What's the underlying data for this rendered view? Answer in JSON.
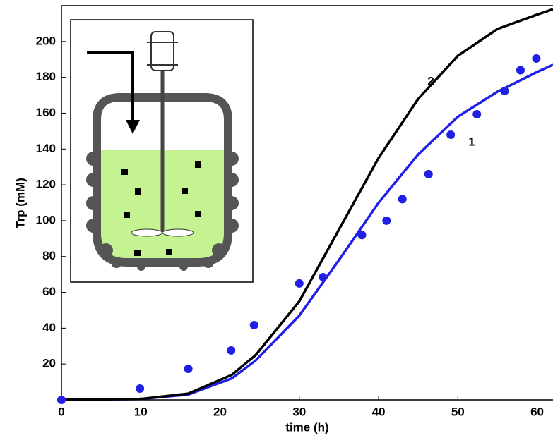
{
  "chart_data": {
    "type": "line",
    "xlabel": "time (h)",
    "ylabel": "Trp (mM)",
    "xlim": [
      0,
      62
    ],
    "ylim": [
      0,
      220
    ],
    "xticks": [
      0,
      10,
      20,
      30,
      40,
      50,
      60
    ],
    "yticks": [
      20,
      40,
      60,
      80,
      100,
      120,
      140,
      160,
      180,
      200
    ],
    "series": [
      {
        "name": "1",
        "type": "line",
        "color": "#1f1fe6",
        "x": [
          0,
          10,
          16,
          21.5,
          24.5,
          30,
          35,
          40,
          45,
          50,
          55,
          60,
          62
        ],
        "values": [
          0,
          0.5,
          3,
          12,
          22,
          47,
          78,
          110,
          137,
          158,
          172,
          183,
          187
        ]
      },
      {
        "name": "2",
        "type": "line",
        "color": "#000000",
        "x": [
          0,
          10,
          16,
          21.5,
          24.5,
          30,
          35,
          40,
          45,
          50,
          55,
          60,
          62
        ],
        "values": [
          0,
          0.5,
          3.5,
          14,
          25,
          55,
          95,
          135,
          168,
          192,
          207,
          215,
          218
        ]
      },
      {
        "type": "scatter",
        "color": "#1f1fe6",
        "x": [
          0,
          9.9,
          16,
          21.4,
          24.3,
          30,
          33,
          37.9,
          41,
          43,
          46.3,
          49.1,
          52.4,
          55.9,
          57.9,
          59.9
        ],
        "values": [
          0,
          6.3,
          17.3,
          27.6,
          41.7,
          65,
          68.5,
          92,
          100,
          112,
          126,
          148,
          159.4,
          172.4,
          184,
          190.5
        ]
      }
    ]
  }
}
